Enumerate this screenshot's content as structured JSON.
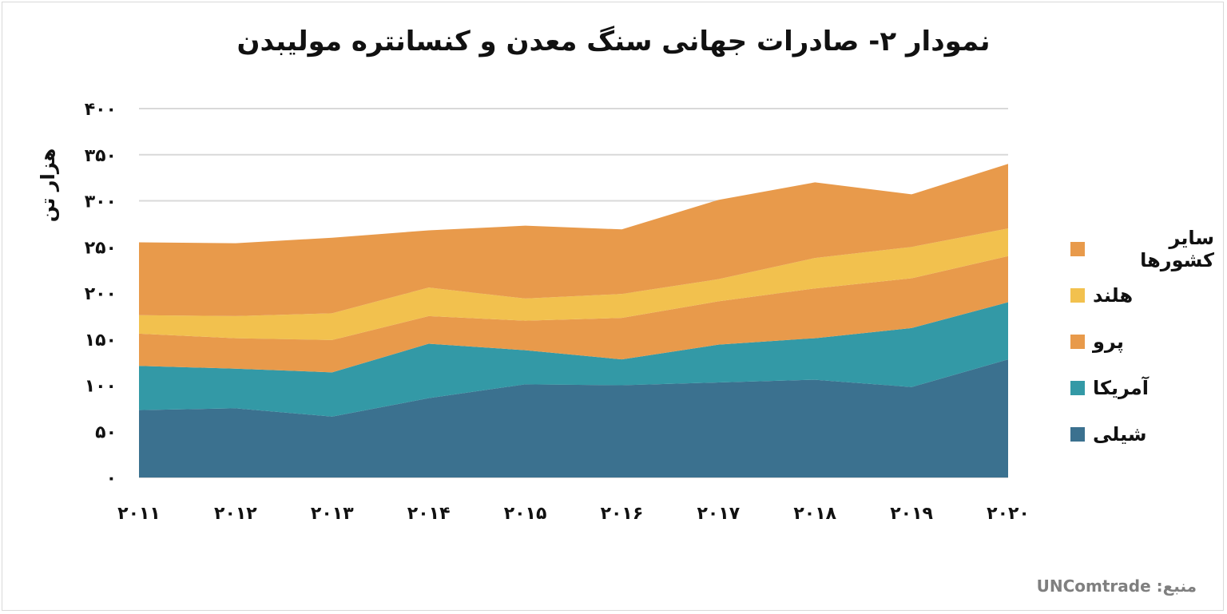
{
  "chart_data": {
    "type": "area",
    "stacked": true,
    "title": "نمودار ۲- صادرات جهانی سنگ معدن و کنسانتره مولیبدن",
    "ylabel": "هزار تن",
    "xlabel": "",
    "source": "منبع: UNComtrade",
    "categories": [
      "2011",
      "2012",
      "2013",
      "2014",
      "2015",
      "2016",
      "2017",
      "2018",
      "2019",
      "2020"
    ],
    "x_tick_labels": [
      "۲۰۱۱",
      "۲۰۱۲",
      "۲۰۱۳",
      "۲۰۱۴",
      "۲۰۱۵",
      "۲۰۱۶",
      "۲۰۱۷",
      "۲۰۱۸",
      "۲۰۱۹",
      "۲۰۲۰"
    ],
    "ylim": [
      0,
      400
    ],
    "y_ticks": [
      0,
      50,
      100,
      150,
      200,
      250,
      300,
      350,
      400
    ],
    "y_tick_labels": [
      "۰",
      "۵۰",
      "۱۰۰",
      "۱۵۰",
      "۲۰۰",
      "۲۵۰",
      "۳۰۰",
      "۳۵۰",
      "۴۰۰"
    ],
    "grid": true,
    "legend_position": "right",
    "series": [
      {
        "name": "شیلی",
        "color": "#3b718f",
        "values": [
          73,
          75,
          66,
          86,
          101,
          100,
          103,
          106,
          98,
          128
        ]
      },
      {
        "name": "آمریکا",
        "color": "#3399a6",
        "values": [
          48,
          43,
          48,
          59,
          37,
          28,
          41,
          45,
          64,
          62
        ]
      },
      {
        "name": "پرو",
        "color": "#e89a4b",
        "values": [
          35,
          33,
          35,
          30,
          32,
          45,
          47,
          54,
          54,
          50
        ]
      },
      {
        "name": "هلند",
        "color": "#f2c14e",
        "values": [
          20,
          24,
          29,
          31,
          24,
          26,
          24,
          33,
          34,
          30
        ]
      },
      {
        "name": "سایر کشورها",
        "color": "#e89a4b",
        "values": [
          79,
          79,
          82,
          62,
          79,
          70,
          86,
          82,
          57,
          70
        ]
      }
    ],
    "legend_order": [
      4,
      3,
      2,
      1,
      0
    ]
  }
}
